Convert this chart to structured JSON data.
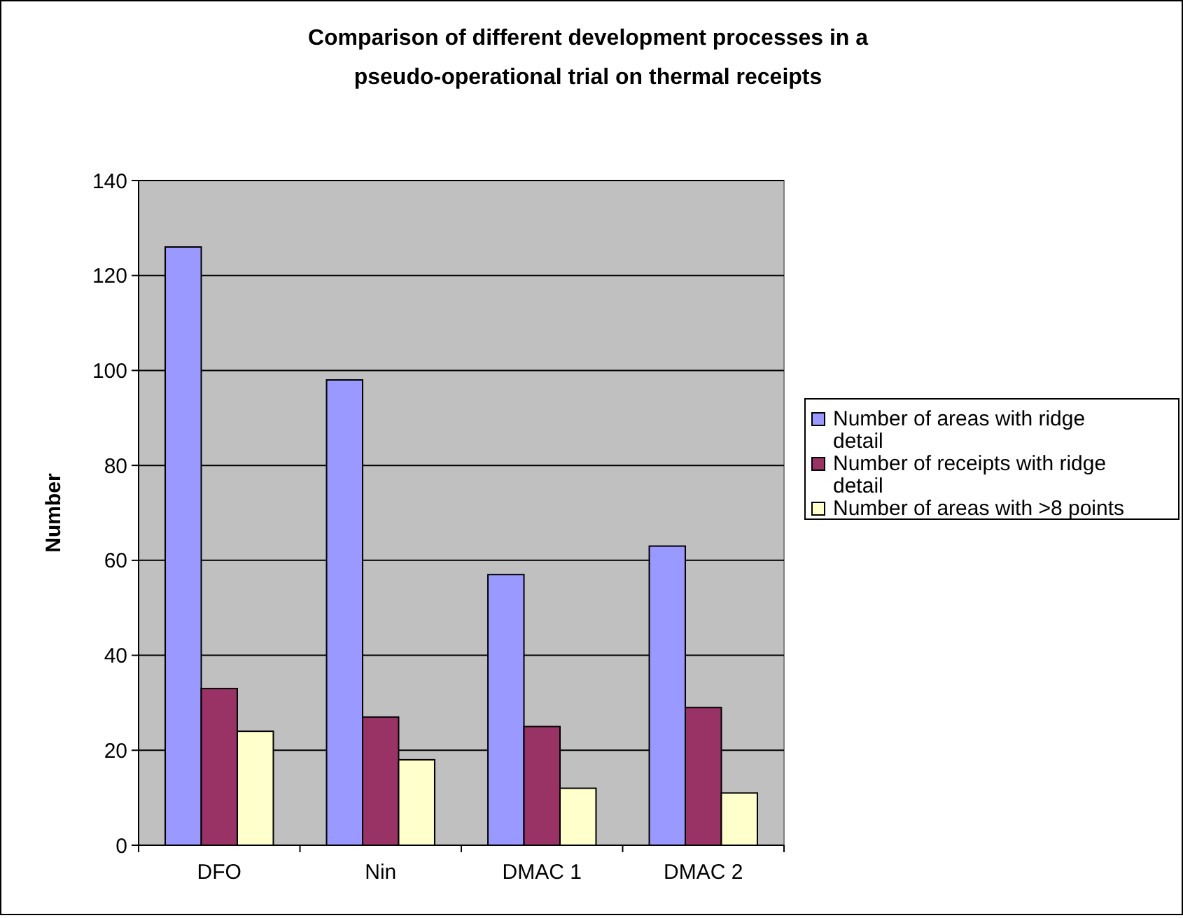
{
  "chart_data": {
    "type": "bar",
    "title": "Comparison of different development processes in a pseudo-operational trial on thermal receipts",
    "ylabel": "Number",
    "categories": [
      "DFO",
      "Nin",
      "DMAC 1",
      "DMAC 2"
    ],
    "series": [
      {
        "name": "Number of areas with ridge detail",
        "color": "#9999ff",
        "values": [
          126,
          98,
          57,
          63
        ]
      },
      {
        "name": "Number of receipts with ridge detail",
        "color": "#993366",
        "values": [
          33,
          27,
          25,
          29
        ]
      },
      {
        "name": "Number of areas with >8 points",
        "color": "#ffffcc",
        "values": [
          24,
          18,
          12,
          11
        ]
      }
    ],
    "ylim": [
      0,
      140
    ],
    "yticks": [
      0,
      20,
      40,
      60,
      80,
      100,
      120,
      140
    ],
    "grid": "y",
    "legend": "right"
  }
}
